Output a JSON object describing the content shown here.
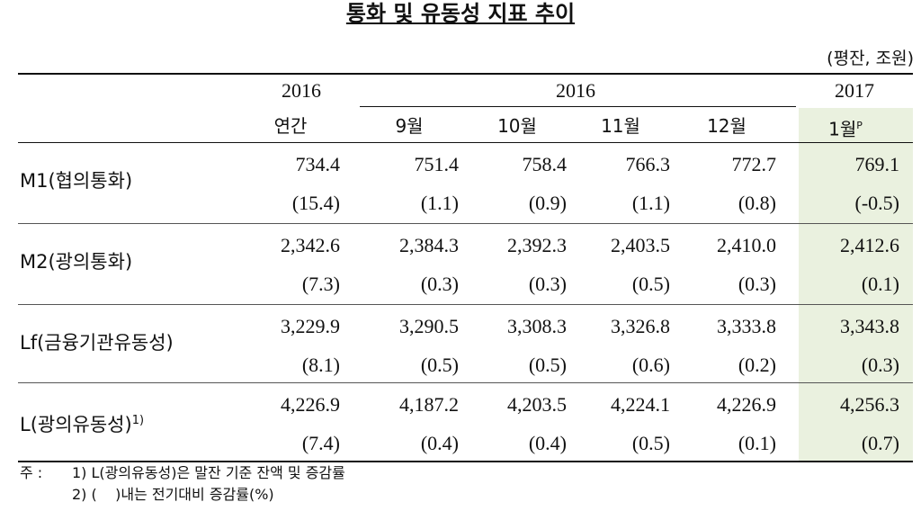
{
  "title": "통화 및 유동성 지표 추이",
  "unit": "(평잔, 조원)",
  "header": {
    "years": [
      "2016",
      "2016",
      "2017"
    ],
    "periods": [
      "연간",
      "9월",
      "10월",
      "11월",
      "12월",
      "1월"
    ],
    "preliminary_mark": "P"
  },
  "rows": [
    {
      "label": "M1(협의통화)",
      "values": [
        "734.4",
        "751.4",
        "758.4",
        "766.3",
        "772.7",
        "769.1"
      ],
      "changes": [
        "(15.4)",
        "(1.1)",
        "(0.9)",
        "(1.1)",
        "(0.8)",
        "(-0.5)"
      ]
    },
    {
      "label": "M2(광의통화)",
      "values": [
        "2,342.6",
        "2,384.3",
        "2,392.3",
        "2,403.5",
        "2,410.0",
        "2,412.6"
      ],
      "changes": [
        "(7.3)",
        "(0.3)",
        "(0.3)",
        "(0.5)",
        "(0.3)",
        "(0.1)"
      ]
    },
    {
      "label": "Lf(금융기관유동성)",
      "values": [
        "3,229.9",
        "3,290.5",
        "3,308.3",
        "3,326.8",
        "3,333.8",
        "3,343.8"
      ],
      "changes": [
        "(8.1)",
        "(0.5)",
        "(0.5)",
        "(0.6)",
        "(0.2)",
        "(0.3)"
      ]
    },
    {
      "label": "L(광의유동성)",
      "label_note": "1)",
      "values": [
        "4,226.9",
        "4,187.2",
        "4,203.5",
        "4,224.1",
        "4,226.9",
        "4,256.3"
      ],
      "changes": [
        "(7.4)",
        "(0.4)",
        "(0.4)",
        "(0.5)",
        "(0.1)",
        "(0.7)"
      ]
    }
  ],
  "notes": {
    "prefix": "주 :",
    "items": [
      "1) L(광의유동성)은 말잔 기준 잔액 및 증감률",
      "2) (    )내는 전기대비 증감률(%)"
    ]
  }
}
